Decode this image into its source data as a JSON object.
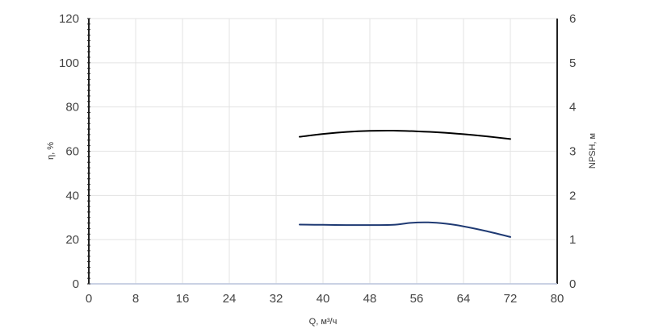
{
  "chart_data": {
    "type": "line",
    "title": "",
    "xlabel": "Q, м³/ч",
    "ylabel": "η, %",
    "y2label": "NPSH, м",
    "xlim": [
      0,
      80
    ],
    "ylim": [
      0,
      120
    ],
    "y2lim": [
      0,
      6
    ],
    "xticks": [
      "0",
      "8",
      "16",
      "24",
      "32",
      "40",
      "48",
      "56",
      "64",
      "72",
      "80"
    ],
    "yticks": [
      "0",
      "20",
      "40",
      "60",
      "80",
      "100",
      "120"
    ],
    "y2ticks": [
      "0",
      "1",
      "2",
      "3",
      "4",
      "5",
      "6"
    ],
    "grid": true,
    "legend": "none",
    "series": [
      {
        "axis": "left",
        "color": "#000000",
        "x": [
          36,
          40,
          44,
          48,
          52,
          56,
          60,
          64,
          68,
          72
        ],
        "y": [
          66.5,
          67.8,
          68.7,
          69.2,
          69.3,
          69.0,
          68.5,
          67.7,
          66.7,
          65.5
        ]
      },
      {
        "axis": "right",
        "color": "#1f3a73",
        "x": [
          36,
          40,
          44,
          48,
          52,
          55,
          58,
          61,
          64,
          68,
          72
        ],
        "y": [
          1.34,
          1.335,
          1.33,
          1.33,
          1.335,
          1.38,
          1.39,
          1.36,
          1.3,
          1.19,
          1.06
        ]
      }
    ]
  },
  "colors": {
    "grid": "#e3e3e3",
    "axis": "#222222",
    "baseline": "#b8c4dc"
  }
}
